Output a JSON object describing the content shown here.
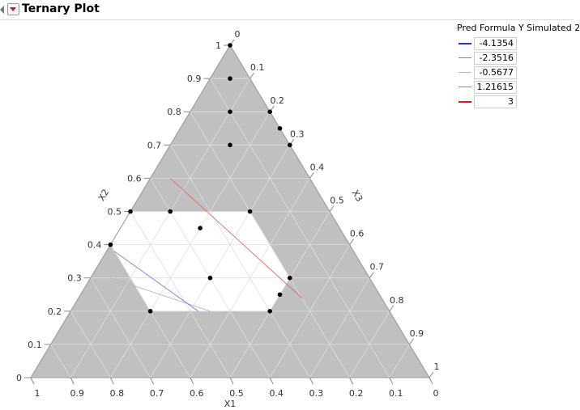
{
  "header": {
    "title": "Ternary Plot"
  },
  "chart_data": {
    "type": "ternary",
    "axes": {
      "bottom": {
        "label": "X1",
        "ticks": [
          "1",
          "0.9",
          "0.8",
          "0.7",
          "0.6",
          "0.5",
          "0.4",
          "0.3",
          "0.2",
          "0.1",
          "0"
        ]
      },
      "left": {
        "label": "X2",
        "ticks": [
          "0",
          "0.1",
          "0.2",
          "0.3",
          "0.4",
          "0.5",
          "0.6",
          "0.7",
          "0.8",
          "0.9",
          "1"
        ]
      },
      "right": {
        "label": "X3",
        "ticks": [
          "0",
          "0.1",
          "0.2",
          "0.3",
          "0.4",
          "0.5",
          "0.6",
          "0.7",
          "0.8",
          "0.9",
          "1"
        ]
      }
    },
    "feasible_region": [
      {
        "x1": 0.5,
        "x2": 0.5,
        "x3": 0.0
      },
      {
        "x1": 0.2,
        "x2": 0.5,
        "x3": 0.3
      },
      {
        "x1": 0.2,
        "x2": 0.3,
        "x3": 0.5
      },
      {
        "x1": 0.3,
        "x2": 0.2,
        "x3": 0.5
      },
      {
        "x1": 0.6,
        "x2": 0.2,
        "x3": 0.2
      },
      {
        "x1": 0.6,
        "x2": 0.4,
        "x3": 0.0
      }
    ],
    "points": [
      {
        "x1": 0.0,
        "x2": 1.0,
        "x3": 0.0
      },
      {
        "x1": 0.05,
        "x2": 0.9,
        "x3": 0.05
      },
      {
        "x1": 0.1,
        "x2": 0.8,
        "x3": 0.1
      },
      {
        "x1": 0.0,
        "x2": 0.8,
        "x3": 0.2
      },
      {
        "x1": 0.0,
        "x2": 0.75,
        "x3": 0.25
      },
      {
        "x1": 0.0,
        "x2": 0.7,
        "x3": 0.3
      },
      {
        "x1": 0.15,
        "x2": 0.7,
        "x3": 0.15
      },
      {
        "x1": 0.2,
        "x2": 0.5,
        "x3": 0.3
      },
      {
        "x1": 0.2,
        "x2": 0.3,
        "x3": 0.5
      },
      {
        "x1": 0.35,
        "x2": 0.45,
        "x3": 0.2
      },
      {
        "x1": 0.4,
        "x2": 0.5,
        "x3": 0.1
      },
      {
        "x1": 0.4,
        "x2": 0.3,
        "x3": 0.3
      },
      {
        "x1": 0.5,
        "x2": 0.5,
        "x3": 0.0
      },
      {
        "x1": 0.25,
        "x2": 0.25,
        "x3": 0.5
      },
      {
        "x1": 0.6,
        "x2": 0.4,
        "x3": 0.0
      },
      {
        "x1": 0.6,
        "x2": 0.2,
        "x3": 0.2
      },
      {
        "x1": 0.3,
        "x2": 0.2,
        "x3": 0.5
      }
    ],
    "contours": [
      {
        "legend_index": 2,
        "from": {
          "x1": 0.65,
          "x2": 0.3,
          "x3": 0.05
        },
        "to": {
          "x1": 0.45,
          "x2": 0.2,
          "x3": 0.35
        }
      },
      {
        "legend_index": 3,
        "from": {
          "x1": 0.35,
          "x2": 0.6,
          "x3": 0.05
        },
        "to": {
          "x1": 0.2,
          "x2": 0.24,
          "x3": 0.56
        }
      },
      {
        "legend_index": 1,
        "from": {
          "x1": 0.6,
          "x2": 0.38,
          "x3": 0.02
        },
        "to": {
          "x1": 0.48,
          "x2": 0.2,
          "x3": 0.32
        }
      }
    ],
    "legend": {
      "title": "Pred Formula Y Simulated 2",
      "entries": [
        {
          "label": "-4.1354",
          "color": "#2233dd"
        },
        {
          "label": "-2.3516",
          "color": "#7777dd"
        },
        {
          "label": "-0.5677",
          "color": "#b7b7b7"
        },
        {
          "label": "1.21615",
          "color": "#e06868"
        },
        {
          "label": "3",
          "color": "#dd1a1a"
        }
      ]
    },
    "colors": {
      "infeasible": "#c0c0c0",
      "feasible": "#ffffff",
      "grid": "#dddddd",
      "point": "#000000"
    }
  }
}
